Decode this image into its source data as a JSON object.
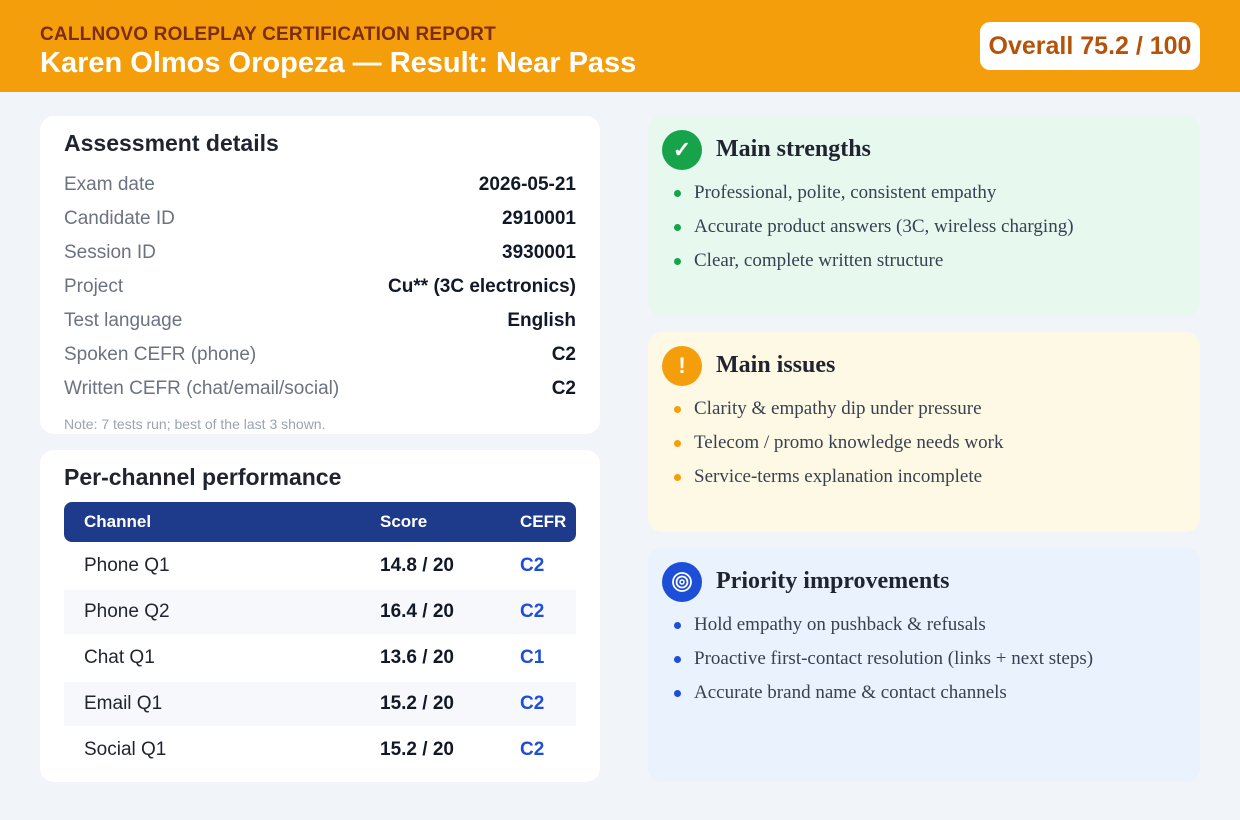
{
  "header": {
    "kicker": "CALLNOVO ROLEPLAY CERTIFICATION REPORT",
    "title": "Karen Olmos Oropeza — Result: Near Pass",
    "overall": "Overall 75.2 / 100"
  },
  "details": {
    "title": "Assessment details",
    "rows": [
      {
        "label": "Exam date",
        "value": "2026-05-21"
      },
      {
        "label": "Candidate ID",
        "value": "2910001"
      },
      {
        "label": "Session ID",
        "value": "3930001"
      },
      {
        "label": "Project",
        "value": "Cu** (3C electronics)"
      },
      {
        "label": "Test language",
        "value": "English"
      },
      {
        "label": "Spoken CEFR (phone)",
        "value": "C2"
      },
      {
        "label": "Written CEFR (chat/email/social)",
        "value": "C2"
      }
    ],
    "note": "Note: 7 tests run; best of the last 3 shown."
  },
  "channels": {
    "title": "Per-channel performance",
    "headers": [
      "Channel",
      "Score",
      "CEFR"
    ],
    "rows": [
      {
        "channel": "Phone Q1",
        "score": "14.8 / 20",
        "cefr": "C2"
      },
      {
        "channel": "Phone Q2",
        "score": "16.4 / 20",
        "cefr": "C2"
      },
      {
        "channel": "Chat Q1",
        "score": "13.6 / 20",
        "cefr": "C1"
      },
      {
        "channel": "Email Q1",
        "score": "15.2 / 20",
        "cefr": "C2"
      },
      {
        "channel": "Social Q1",
        "score": "15.2 / 20",
        "cefr": "C2"
      }
    ]
  },
  "strengths": {
    "icon": "check-icon",
    "title": "Main strengths",
    "items": [
      "Professional, polite, consistent empathy",
      "Accurate product answers (3C, wireless charging)",
      "Clear, complete written structure"
    ]
  },
  "issues": {
    "icon": "exclamation-icon",
    "title": "Main issues",
    "items": [
      "Clarity & empathy dip under pressure",
      "Telecom / promo knowledge needs work",
      "Service-terms explanation incomplete"
    ]
  },
  "improvements": {
    "icon": "target-icon",
    "title": "Priority improvements",
    "items": [
      "Hold empathy on pushback & refusals",
      "Proactive first-contact resolution (links + next steps)",
      "Accurate brand name & contact channels"
    ]
  },
  "colors": {
    "header": "#f59e0b",
    "table_header": "#1e3a8a",
    "cefr": "#1d4ed8",
    "strengths": "#16a34a",
    "issues": "#f59e0b",
    "improvements": "#1d4ed8"
  }
}
